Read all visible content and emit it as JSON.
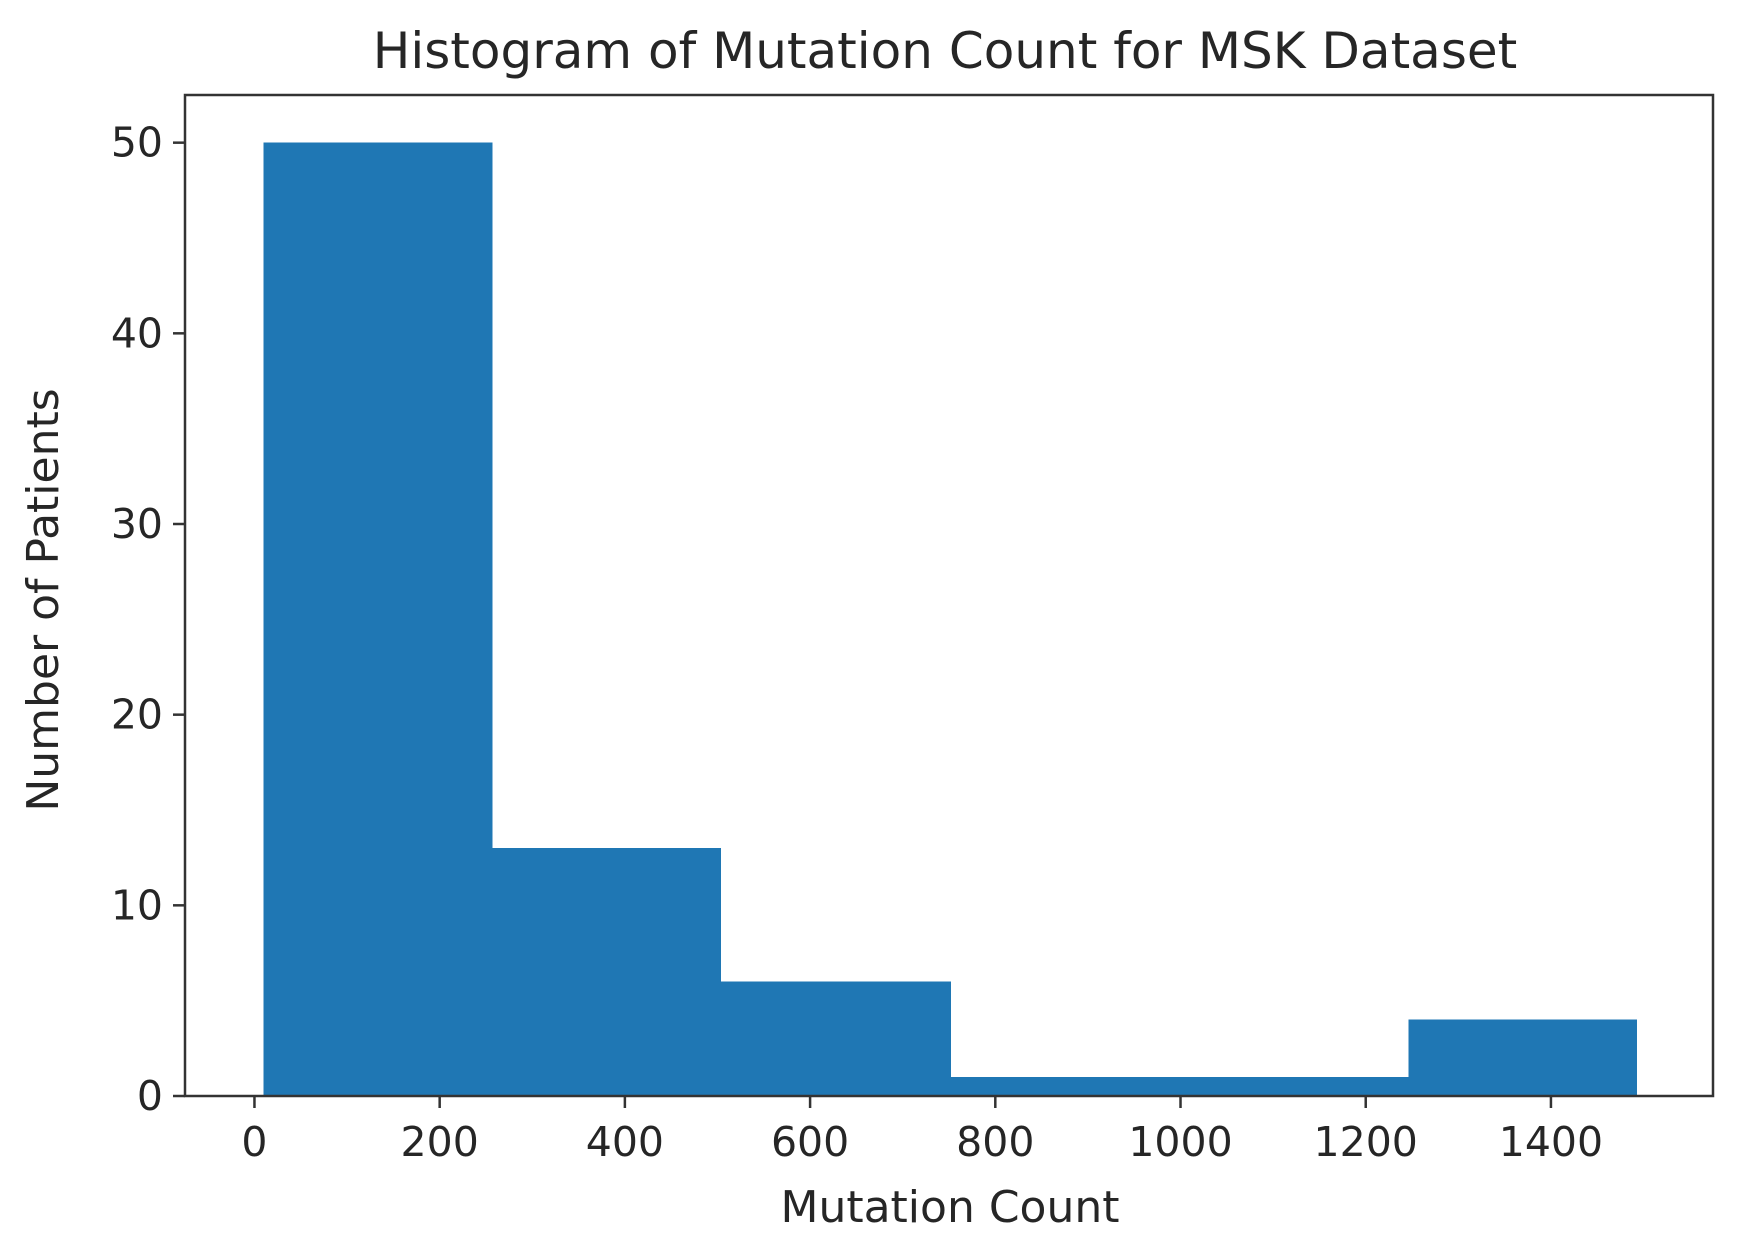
{
  "chart_data": {
    "type": "bar",
    "title": "Histogram of Mutation Count for MSK Dataset",
    "xlabel": "Mutation Count",
    "ylabel": "Number of Patients",
    "xlim": [
      -75,
      1575
    ],
    "ylim": [
      0,
      52.5
    ],
    "xticks": [
      0,
      200,
      400,
      600,
      800,
      1000,
      1200,
      1400
    ],
    "xtick_labels": [
      "0",
      "200",
      "400",
      "600",
      "800",
      "1000",
      "1200",
      "1400"
    ],
    "yticks": [
      0,
      10,
      20,
      30,
      40,
      50
    ],
    "ytick_labels": [
      "0",
      "10",
      "20",
      "30",
      "40",
      "50"
    ],
    "bins": [
      {
        "x0": 10,
        "x1": 257,
        "count": 50
      },
      {
        "x0": 257,
        "x1": 504,
        "count": 13
      },
      {
        "x0": 504,
        "x1": 752,
        "count": 6
      },
      {
        "x0": 752,
        "x1": 999,
        "count": 1
      },
      {
        "x0": 999,
        "x1": 1246,
        "count": 1
      },
      {
        "x0": 1246,
        "x1": 1493,
        "count": 4
      }
    ],
    "bar_color": "#1f77b4",
    "grid": false,
    "legend": "none"
  }
}
